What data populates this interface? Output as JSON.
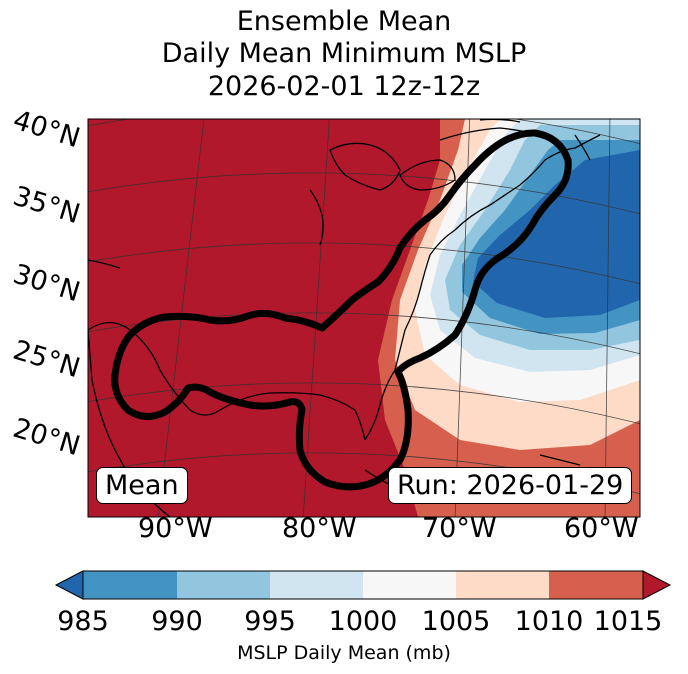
{
  "title": {
    "line1": "Ensemble Mean",
    "line2": "Daily Mean Minimum MSLP",
    "line3": "2026-02-01 12z-12z"
  },
  "map": {
    "lat_labels": [
      "40°N",
      "35°N",
      "30°N",
      "25°N",
      "20°N"
    ],
    "lon_labels": [
      "90°W",
      "80°W",
      "70°W",
      "60°W"
    ],
    "box_left": "Mean",
    "box_right": "Run: 2026-01-29"
  },
  "colorbar": {
    "ticks": [
      "985",
      "990",
      "995",
      "1000",
      "1005",
      "1010",
      "1015"
    ],
    "label": "MSLP Daily Mean (mb)",
    "colors": [
      "#2166ac",
      "#4393c3",
      "#92c5de",
      "#d1e5f0",
      "#f7f7f7",
      "#fddbc7",
      "#d6604d",
      "#b2182b"
    ]
  }
}
